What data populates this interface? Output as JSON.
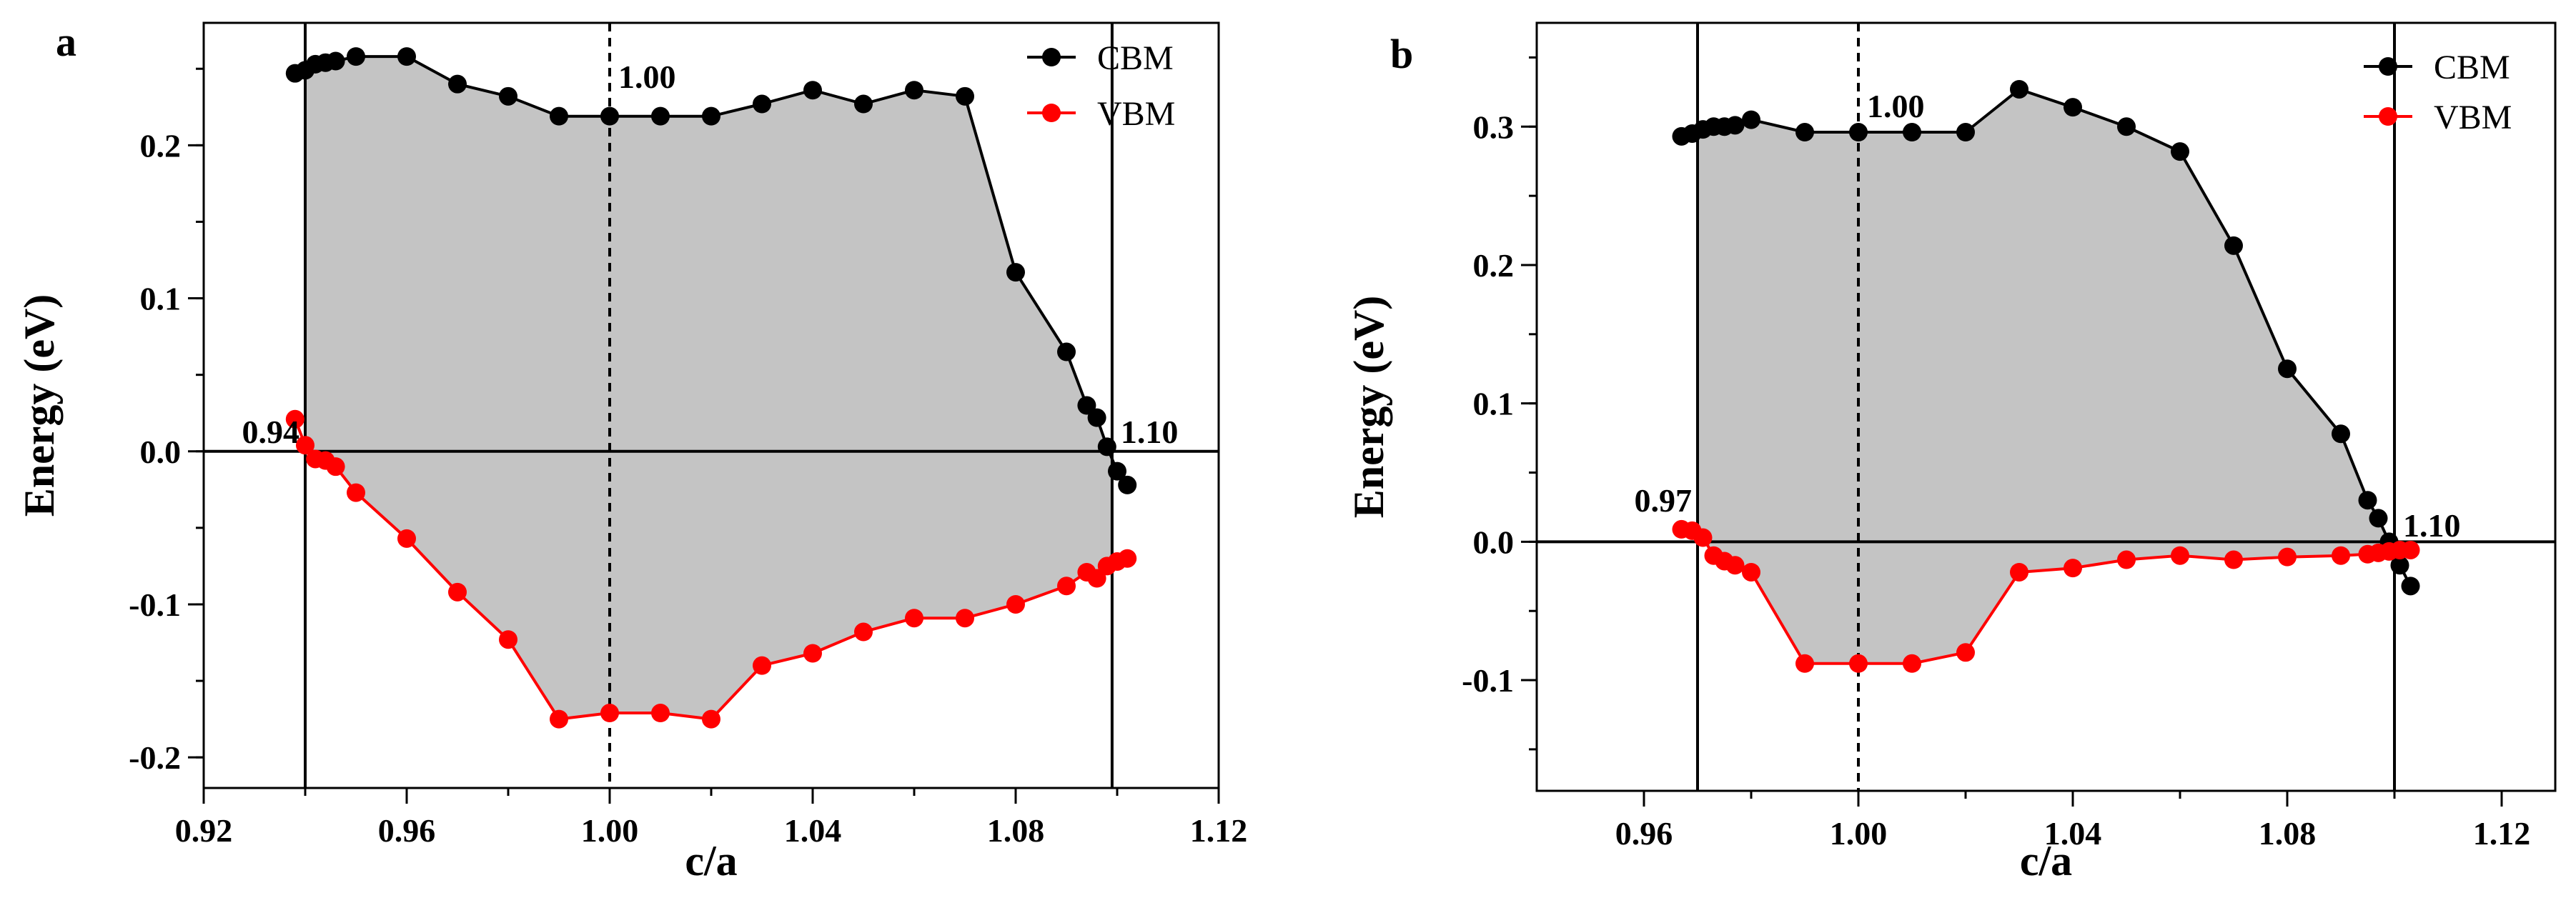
{
  "chart_data": [
    {
      "type": "line",
      "panel": "a",
      "xlabel": "c/a",
      "ylabel": "Energy (eV)",
      "xlim": [
        0.92,
        1.12
      ],
      "ylim": [
        -0.22,
        0.28
      ],
      "xticks": [
        0.92,
        0.96,
        1.0,
        1.04,
        1.08,
        1.12
      ],
      "xtick_labels": [
        "0.92",
        "0.96",
        "1.00",
        "1.04",
        "1.08",
        "1.12"
      ],
      "yticks": [
        -0.2,
        -0.1,
        0.0,
        0.1,
        0.2
      ],
      "ytick_labels": [
        "-0.2",
        "-0.1",
        "0.0",
        "0.1",
        "0.2"
      ],
      "vlines": [
        0.94,
        1.099
      ],
      "dashed_vline": 1.0,
      "hline": 0.0,
      "fill_between": [
        "CBM",
        "VBM"
      ],
      "fill_color": "#c4c4c4",
      "annotations": [
        {
          "text": "1.00",
          "x": 1.0,
          "y": 0.245,
          "anchor": "start"
        },
        {
          "text": "0.94",
          "x": 0.94,
          "y": 0.013,
          "anchor": "end"
        },
        {
          "text": "1.10",
          "x": 1.099,
          "y": 0.013,
          "anchor": "start"
        }
      ],
      "legend_position": "top-right",
      "series": [
        {
          "name": "CBM",
          "color": "#000000",
          "x": [
            0.938,
            0.94,
            0.942,
            0.944,
            0.946,
            0.95,
            0.96,
            0.97,
            0.98,
            0.99,
            1.0,
            1.01,
            1.02,
            1.03,
            1.04,
            1.05,
            1.06,
            1.07,
            1.08,
            1.09,
            1.094,
            1.096,
            1.098,
            1.1,
            1.102
          ],
          "values": [
            0.247,
            0.249,
            0.253,
            0.254,
            0.255,
            0.258,
            0.258,
            0.24,
            0.232,
            0.219,
            0.219,
            0.219,
            0.219,
            0.227,
            0.236,
            0.227,
            0.236,
            0.232,
            0.117,
            0.065,
            0.03,
            0.022,
            0.003,
            -0.013,
            -0.022
          ]
        },
        {
          "name": "VBM",
          "color": "#ff0000",
          "x": [
            0.938,
            0.94,
            0.942,
            0.944,
            0.946,
            0.95,
            0.96,
            0.97,
            0.98,
            0.99,
            1.0,
            1.01,
            1.02,
            1.03,
            1.04,
            1.05,
            1.06,
            1.07,
            1.08,
            1.09,
            1.094,
            1.096,
            1.098,
            1.1,
            1.102
          ],
          "values": [
            0.021,
            0.004,
            -0.005,
            -0.006,
            -0.01,
            -0.027,
            -0.057,
            -0.092,
            -0.123,
            -0.175,
            -0.171,
            -0.171,
            -0.175,
            -0.14,
            -0.132,
            -0.118,
            -0.109,
            -0.109,
            -0.1,
            -0.088,
            -0.079,
            -0.083,
            -0.075,
            -0.072,
            -0.07
          ]
        }
      ]
    },
    {
      "type": "line",
      "panel": "b",
      "xlabel": "c/a",
      "ylabel": "Energy (eV)",
      "xlim": [
        0.94,
        1.13
      ],
      "ylim": [
        -0.18,
        0.375
      ],
      "xticks": [
        0.96,
        1.0,
        1.04,
        1.08,
        1.12
      ],
      "xtick_labels": [
        "0.96",
        "1.00",
        "1.04",
        "1.08",
        "1.12"
      ],
      "yticks": [
        -0.1,
        0.0,
        0.1,
        0.2,
        0.3
      ],
      "ytick_labels": [
        "-0.1",
        "0.0",
        "0.1",
        "0.2",
        "0.3"
      ],
      "vlines": [
        0.97,
        1.1
      ],
      "dashed_vline": 1.0,
      "hline": 0.0,
      "fill_between": [
        "CBM",
        "VBM"
      ],
      "fill_color": "#c4c4c4",
      "annotations": [
        {
          "text": "1.00",
          "x": 1.0,
          "y": 0.315,
          "anchor": "start"
        },
        {
          "text": "0.97",
          "x": 0.97,
          "y": 0.03,
          "anchor": "end"
        },
        {
          "text": "1.10",
          "x": 1.1,
          "y": 0.012,
          "anchor": "start"
        }
      ],
      "legend_position": "top-right",
      "series": [
        {
          "name": "CBM",
          "color": "#000000",
          "x": [
            0.967,
            0.969,
            0.971,
            0.973,
            0.975,
            0.977,
            0.98,
            0.99,
            1.0,
            1.01,
            1.02,
            1.03,
            1.04,
            1.05,
            1.06,
            1.07,
            1.08,
            1.09,
            1.095,
            1.097,
            1.099,
            1.101,
            1.103
          ],
          "values": [
            0.293,
            0.295,
            0.298,
            0.3,
            0.3,
            0.301,
            0.305,
            0.296,
            0.296,
            0.296,
            0.296,
            0.327,
            0.314,
            0.3,
            0.282,
            0.214,
            0.125,
            0.078,
            0.03,
            0.017,
            0.0,
            -0.017,
            -0.032
          ]
        },
        {
          "name": "VBM",
          "color": "#ff0000",
          "x": [
            0.967,
            0.969,
            0.971,
            0.973,
            0.975,
            0.977,
            0.98,
            0.99,
            1.0,
            1.01,
            1.02,
            1.03,
            1.04,
            1.05,
            1.06,
            1.07,
            1.08,
            1.09,
            1.095,
            1.097,
            1.099,
            1.101,
            1.103
          ],
          "values": [
            0.009,
            0.008,
            0.003,
            -0.01,
            -0.014,
            -0.017,
            -0.022,
            -0.088,
            -0.088,
            -0.088,
            -0.08,
            -0.022,
            -0.019,
            -0.013,
            -0.01,
            -0.013,
            -0.011,
            -0.01,
            -0.009,
            -0.008,
            -0.007,
            -0.006,
            -0.006
          ]
        }
      ]
    }
  ]
}
